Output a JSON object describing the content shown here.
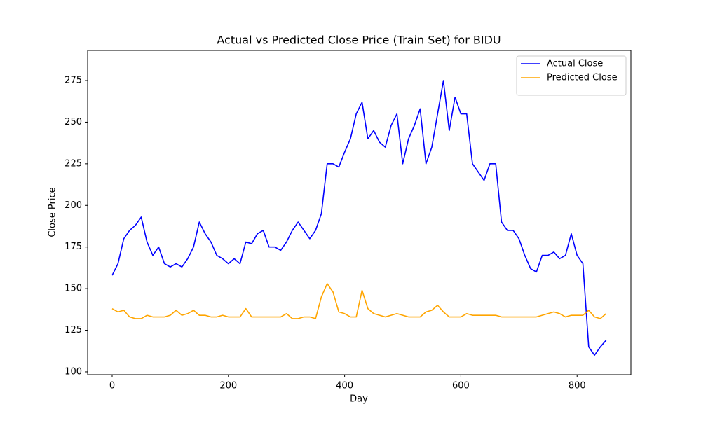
{
  "chart_data": {
    "type": "line",
    "title": "Actual vs Predicted Close Price (Train Set) for BIDU",
    "x_label": "Day",
    "y_label": "Close Price",
    "x": [
      0,
      10,
      20,
      30,
      40,
      50,
      60,
      70,
      80,
      90,
      100,
      110,
      120,
      130,
      140,
      150,
      160,
      170,
      180,
      190,
      200,
      210,
      220,
      230,
      240,
      250,
      260,
      270,
      280,
      290,
      300,
      310,
      320,
      330,
      340,
      350,
      360,
      370,
      380,
      390,
      400,
      410,
      420,
      430,
      440,
      450,
      460,
      470,
      480,
      490,
      500,
      510,
      520,
      530,
      540,
      550,
      560,
      570,
      580,
      590,
      600,
      610,
      620,
      630,
      640,
      650,
      660,
      670,
      680,
      690,
      700,
      710,
      720,
      730,
      740,
      750,
      760,
      770,
      780,
      790,
      800,
      810,
      820,
      830,
      840,
      850
    ],
    "series": [
      {
        "name": "Actual Close",
        "color": "#0000ff",
        "values": [
          158,
          165,
          180,
          185,
          188,
          193,
          178,
          170,
          175,
          165,
          163,
          165,
          163,
          168,
          175,
          190,
          183,
          178,
          170,
          168,
          165,
          168,
          165,
          178,
          177,
          183,
          185,
          175,
          175,
          173,
          178,
          185,
          190,
          185,
          180,
          185,
          195,
          225,
          225,
          223,
          232,
          240,
          255,
          262,
          240,
          245,
          238,
          235,
          248,
          255,
          225,
          240,
          248,
          258,
          225,
          235,
          255,
          275,
          245,
          265,
          255,
          255,
          225,
          220,
          215,
          225,
          225,
          190,
          185,
          185,
          180,
          170,
          162,
          160,
          170,
          170,
          172,
          168,
          170,
          183,
          170,
          165,
          115,
          110,
          115,
          119
        ]
      },
      {
        "name": "Predicted Close",
        "color": "#ffa500",
        "values": [
          138,
          136,
          137,
          133,
          132,
          132,
          134,
          133,
          133,
          133,
          134,
          137,
          134,
          135,
          137,
          134,
          134,
          133,
          133,
          134,
          133,
          133,
          133,
          138,
          133,
          133,
          133,
          133,
          133,
          133,
          135,
          132,
          132,
          133,
          133,
          132,
          145,
          153,
          148,
          136,
          135,
          133,
          133,
          149,
          138,
          135,
          134,
          133,
          134,
          135,
          134,
          133,
          133,
          133,
          136,
          137,
          140,
          136,
          133,
          133,
          133,
          135,
          134,
          134,
          134,
          134,
          134,
          133,
          133,
          133,
          133,
          133,
          133,
          133,
          134,
          135,
          136,
          135,
          133,
          134,
          134,
          134,
          137,
          133,
          132,
          135
        ]
      }
    ],
    "xlim": [
      -42.2,
      892.6
    ],
    "ylim": [
      98.3,
      293.1
    ],
    "xticks": [
      0,
      200,
      400,
      600,
      800
    ],
    "yticks": [
      100,
      125,
      150,
      175,
      200,
      225,
      250,
      275
    ],
    "grid": false,
    "legend": "upper right"
  }
}
